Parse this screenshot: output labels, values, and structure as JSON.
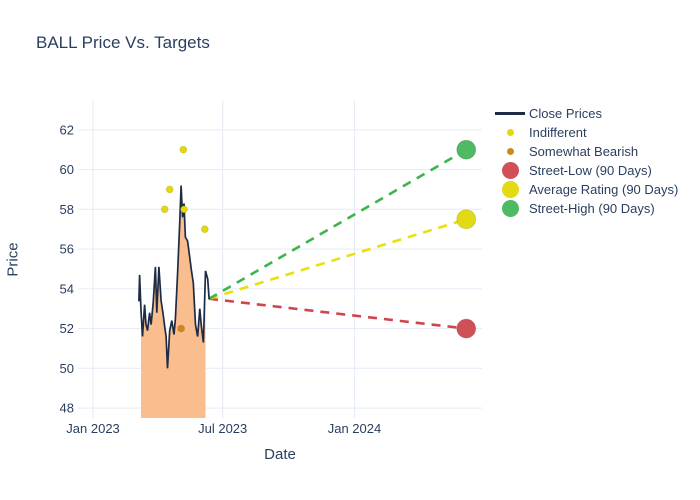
{
  "chart_data": {
    "type": "line",
    "title": "BALL Price Vs. Targets",
    "xlabel": "Date",
    "ylabel": "Price",
    "grid": true,
    "legend_position": "right-outside",
    "x_axis": {
      "range": [
        "2022-12-11",
        "2024-06-27"
      ],
      "ticks": [
        {
          "label": "Jan 2023",
          "date": "2023-01-01"
        },
        {
          "label": "Jul 2023",
          "date": "2023-07-01"
        },
        {
          "label": "Jan 2024",
          "date": "2024-01-01"
        }
      ]
    },
    "y_axis": {
      "range": [
        47.5,
        63.5
      ],
      "ticks": [
        48,
        50,
        52,
        54,
        56,
        58,
        60,
        62
      ]
    },
    "target_line_origin": [
      "2023-06-12",
      53.5
    ],
    "series": [
      {
        "name": "Close Prices",
        "type": "line",
        "color": "#1e2b45",
        "line_width": 1.7,
        "fill_color": "#f9bd8e",
        "fill_range": [
          "2023-03-09",
          "2023-06-07"
        ],
        "points": [
          [
            "2023-03-06",
            53.4
          ],
          [
            "2023-03-07",
            54.7
          ],
          [
            "2023-03-09",
            52.9
          ],
          [
            "2023-03-11",
            51.6
          ],
          [
            "2023-03-14",
            53.2
          ],
          [
            "2023-03-16",
            52.2
          ],
          [
            "2023-03-18",
            51.9
          ],
          [
            "2023-03-21",
            52.8
          ],
          [
            "2023-03-23",
            52.2
          ],
          [
            "2023-03-26",
            53.3
          ],
          [
            "2023-03-29",
            55.1
          ],
          [
            "2023-03-31",
            52.8
          ],
          [
            "2023-04-03",
            55.1
          ],
          [
            "2023-04-06",
            53.4
          ],
          [
            "2023-04-09",
            52.7
          ],
          [
            "2023-04-11",
            52.1
          ],
          [
            "2023-04-13",
            51.6
          ],
          [
            "2023-04-15",
            50.0
          ],
          [
            "2023-04-18",
            51.9
          ],
          [
            "2023-04-21",
            52.4
          ],
          [
            "2023-04-24",
            51.7
          ],
          [
            "2023-04-26",
            52.5
          ],
          [
            "2023-04-29",
            54.8
          ],
          [
            "2023-05-02",
            57.3
          ],
          [
            "2023-05-04",
            59.2
          ],
          [
            "2023-05-06",
            57.6
          ],
          [
            "2023-05-08",
            58.3
          ],
          [
            "2023-05-10",
            56.6
          ],
          [
            "2023-05-13",
            56.4
          ],
          [
            "2023-05-16",
            55.6
          ],
          [
            "2023-05-18",
            55.0
          ],
          [
            "2023-05-21",
            54.3
          ],
          [
            "2023-05-24",
            52.2
          ],
          [
            "2023-05-27",
            51.6
          ],
          [
            "2023-05-30",
            53.0
          ],
          [
            "2023-06-01",
            52.2
          ],
          [
            "2023-06-04",
            51.3
          ],
          [
            "2023-06-07",
            54.9
          ],
          [
            "2023-06-10",
            54.5
          ],
          [
            "2023-06-12",
            53.5
          ]
        ]
      },
      {
        "name": "Indifferent",
        "type": "scatter",
        "color": "#e3d908",
        "size": 7,
        "points": [
          [
            "2023-04-11",
            58
          ],
          [
            "2023-04-18",
            59
          ],
          [
            "2023-05-07",
            61
          ],
          [
            "2023-05-08",
            58
          ],
          [
            "2023-06-06",
            57
          ]
        ]
      },
      {
        "name": "Somewhat Bearish",
        "type": "scatter",
        "color": "#d0881c",
        "size": 7,
        "points": [
          [
            "2023-05-04",
            52
          ]
        ]
      },
      {
        "name": "Street-Low (90 Days)",
        "type": "target",
        "color": "#d14f56",
        "dash_color": "#d2444c",
        "size": 19,
        "points": [
          [
            "2024-06-05",
            52
          ]
        ]
      },
      {
        "name": "Average Rating (90 Days)",
        "type": "target",
        "color": "#e2da12",
        "dash_color": "#e8e00a",
        "size": 19,
        "points": [
          [
            "2024-06-05",
            57.5
          ]
        ]
      },
      {
        "name": "Street-High (90 Days)",
        "type": "target",
        "color": "#4eba63",
        "dash_color": "#3cb54a",
        "size": 19,
        "points": [
          [
            "2024-06-05",
            61
          ]
        ]
      }
    ],
    "style": {
      "grid_color": "#e7edf6",
      "text_color": "#2a3f5f",
      "background": "#ffffff"
    }
  }
}
